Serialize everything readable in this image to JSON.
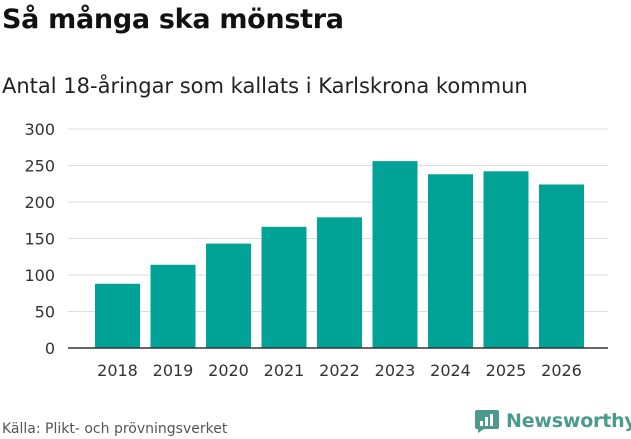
{
  "title": "Så många ska mönstra",
  "subtitle": "Antal 18-åringar som kallats i Karlskrona kommun",
  "source": "Källa: Plikt- och prövningsverket",
  "brand": {
    "name": "Newsworthy",
    "color": "#4a9a8e",
    "icon": "newsworthy-logo-icon"
  },
  "colors": {
    "bar": "#00a396",
    "grid": "#dddddd",
    "axis": "#333333"
  },
  "chart_data": {
    "type": "bar",
    "categories": [
      "2018",
      "2019",
      "2020",
      "2021",
      "2022",
      "2023",
      "2024",
      "2025",
      "2026"
    ],
    "values": [
      88,
      114,
      143,
      166,
      179,
      256,
      238,
      242,
      224
    ],
    "ylim": [
      0,
      300
    ],
    "yticks": [
      0,
      50,
      100,
      150,
      200,
      250,
      300
    ],
    "grid": true,
    "legend": "none"
  }
}
